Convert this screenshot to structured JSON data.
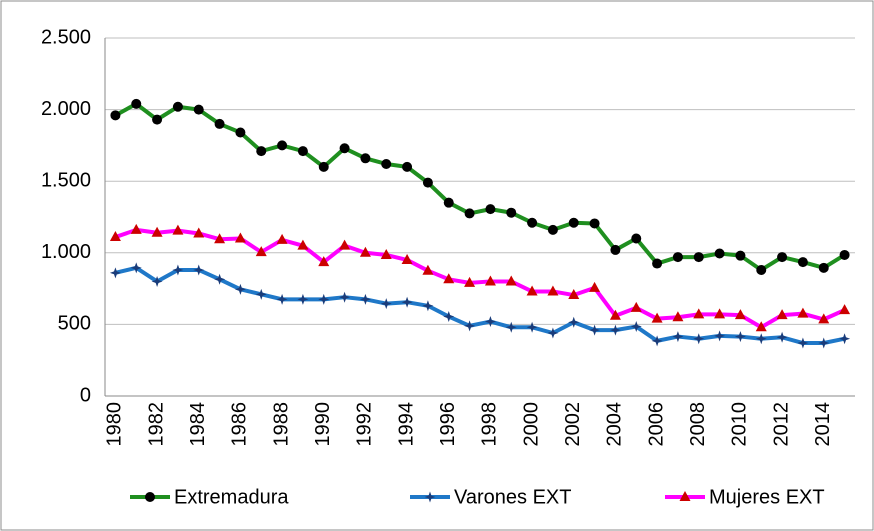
{
  "chart_data": {
    "type": "line",
    "categories": [
      "1980",
      null,
      "1982",
      null,
      "1984",
      null,
      "1986",
      null,
      "1988",
      null,
      "1990",
      null,
      "1992",
      null,
      "1994",
      null,
      "1996",
      null,
      "1998",
      null,
      "2000",
      null,
      "2002",
      null,
      "2004",
      null,
      "2006",
      null,
      "2008",
      null,
      "2010",
      null,
      "2012",
      null,
      "2014",
      null
    ],
    "series": [
      {
        "name": "Extremadura",
        "color": "#1f8f1f",
        "marker": "circle",
        "marker_color": "#000000",
        "values": [
          1960,
          2040,
          1930,
          2020,
          2000,
          1900,
          1840,
          1710,
          1750,
          1710,
          1600,
          1730,
          1660,
          1620,
          1600,
          1490,
          1350,
          1275,
          1305,
          1280,
          1210,
          1160,
          1210,
          1205,
          1020,
          1100,
          925,
          970,
          970,
          995,
          980,
          880,
          970,
          935,
          895,
          985
        ]
      },
      {
        "name": "Varones EXT",
        "color": "#1f78c8",
        "marker": "star",
        "marker_color": "#1a3c7a",
        "values": [
          860,
          895,
          800,
          880,
          880,
          815,
          745,
          710,
          675,
          675,
          675,
          690,
          675,
          645,
          655,
          630,
          555,
          490,
          520,
          480,
          480,
          440,
          515,
          460,
          460,
          485,
          385,
          415,
          400,
          420,
          415,
          400,
          410,
          370,
          370,
          400
        ]
      },
      {
        "name": "Mujeres EXT",
        "color": "#ff00ff",
        "marker": "triangle",
        "marker_color": "#cc0000",
        "values": [
          1110,
          1160,
          1140,
          1155,
          1135,
          1095,
          1100,
          1005,
          1090,
          1050,
          935,
          1050,
          1000,
          985,
          950,
          875,
          815,
          790,
          800,
          800,
          730,
          730,
          705,
          755,
          560,
          615,
          540,
          550,
          570,
          570,
          565,
          480,
          565,
          575,
          535,
          600
        ]
      }
    ],
    "ylim": [
      0,
      2500
    ],
    "yticks": [
      0,
      500,
      {
        "value": 1000,
        "label": "1.000"
      },
      {
        "value": 1500,
        "label": "1.500"
      },
      {
        "value": 2000,
        "label": "2.000"
      },
      {
        "value": 2500,
        "label": "2.500"
      }
    ],
    "grid": true,
    "legend": "bottom"
  }
}
